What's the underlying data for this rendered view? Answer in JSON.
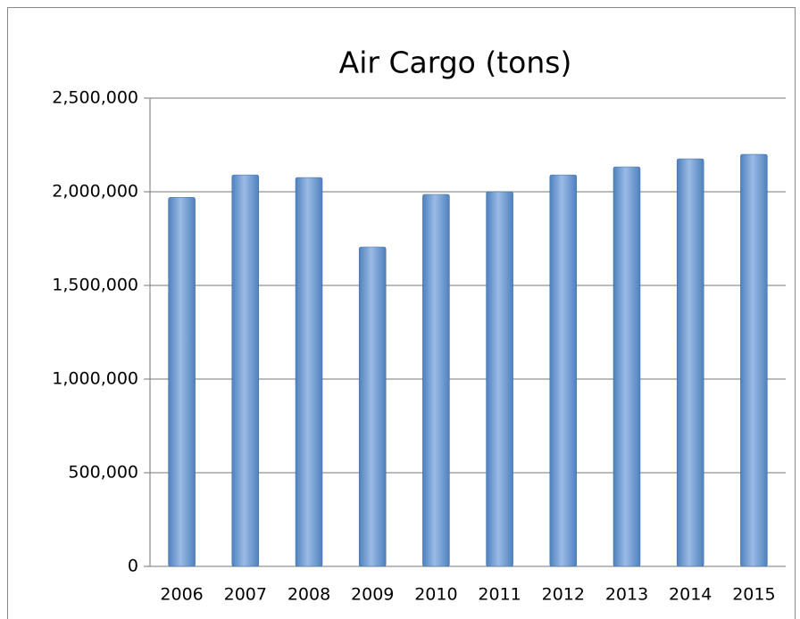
{
  "chart_data": {
    "type": "bar",
    "title": "Air Cargo (tons)",
    "categories": [
      "2006",
      "2007",
      "2008",
      "2009",
      "2010",
      "2011",
      "2012",
      "2013",
      "2014",
      "2015"
    ],
    "values": [
      1970000,
      2090000,
      2076000,
      1705000,
      1986000,
      2000000,
      2090000,
      2133000,
      2176000,
      2200000
    ],
    "color": "#4f81bd",
    "ylim": [
      0,
      2500000
    ],
    "yticks": [
      0,
      {
        "value": 500000,
        "label": "500,000"
      },
      {
        "value": 1000000,
        "label": "1,000,000"
      },
      {
        "value": 1500000,
        "label": "1,500,000"
      },
      {
        "value": 2000000,
        "label": "2,000,000"
      },
      {
        "value": 2500000,
        "label": "2,500,000"
      }
    ],
    "grid": true
  }
}
